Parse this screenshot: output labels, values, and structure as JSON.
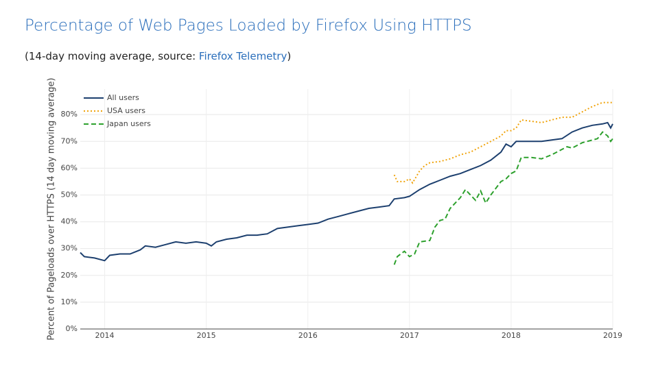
{
  "chart_data": {
    "type": "line",
    "title": "Percentage of Web Pages Loaded by Firefox Using HTTPS",
    "subtitle_prefix": "(14-day moving average, source: ",
    "subtitle_link": "Firefox Telemetry",
    "subtitle_suffix": ")",
    "y_label": "Percent of Pageloads over HTTPS (14 day moving average)",
    "xlim": [
      2013.76,
      2019.0
    ],
    "xticks": [
      2014,
      2015,
      2016,
      2017,
      2018,
      2019
    ],
    "ylim": [
      0,
      89.5
    ],
    "yticks": [
      {
        "value": 0,
        "label": "0%"
      },
      {
        "value": 10,
        "label": "10%"
      },
      {
        "value": 20,
        "label": "20%"
      },
      {
        "value": 30,
        "label": "30%"
      },
      {
        "value": 40,
        "label": "40%"
      },
      {
        "value": 50,
        "label": "50%"
      },
      {
        "value": 60,
        "label": "60%"
      },
      {
        "value": 70,
        "label": "70%"
      },
      {
        "value": 80,
        "label": "80%"
      }
    ],
    "grid": true,
    "legend": "top-left",
    "series": [
      {
        "name": "All users",
        "color": "#1c3f6e",
        "dash": "solid",
        "x": [
          2013.76,
          2013.8,
          2013.9,
          2014.0,
          2014.05,
          2014.15,
          2014.25,
          2014.35,
          2014.4,
          2014.5,
          2014.6,
          2014.7,
          2014.8,
          2014.9,
          2015.0,
          2015.05,
          2015.1,
          2015.2,
          2015.3,
          2015.4,
          2015.5,
          2015.6,
          2015.7,
          2015.8,
          2015.9,
          2016.0,
          2016.1,
          2016.2,
          2016.3,
          2016.4,
          2016.5,
          2016.6,
          2016.7,
          2016.8,
          2016.85,
          2016.95,
          2017.0,
          2017.1,
          2017.2,
          2017.3,
          2017.4,
          2017.5,
          2017.6,
          2017.7,
          2017.8,
          2017.9,
          2017.95,
          2018.0,
          2018.05,
          2018.2,
          2018.3,
          2018.4,
          2018.5,
          2018.6,
          2018.7,
          2018.8,
          2018.9,
          2018.95,
          2018.98,
          2019.0
        ],
        "values": [
          28.5,
          27,
          26.5,
          25.5,
          27.5,
          28,
          28,
          29.5,
          31,
          30.5,
          31.5,
          32.5,
          32,
          32.5,
          32,
          31,
          32.5,
          33.5,
          34,
          35,
          35,
          35.5,
          37.5,
          38,
          38.5,
          39,
          39.5,
          41,
          42,
          43,
          44,
          45,
          45.5,
          46,
          48.5,
          49,
          49.5,
          52,
          54,
          55.5,
          57,
          58,
          59.5,
          61,
          63,
          66,
          69,
          68,
          70,
          70,
          70,
          70.5,
          71,
          73.5,
          75,
          76,
          76.5,
          77,
          75,
          76.5
        ]
      },
      {
        "name": "USA users",
        "color": "#f0a30a",
        "dash": "dot",
        "x": [
          2016.85,
          2016.88,
          2016.95,
          2017.0,
          2017.03,
          2017.1,
          2017.15,
          2017.2,
          2017.3,
          2017.4,
          2017.5,
          2017.6,
          2017.7,
          2017.8,
          2017.9,
          2017.95,
          2018.0,
          2018.05,
          2018.1,
          2018.2,
          2018.3,
          2018.4,
          2018.5,
          2018.6,
          2018.7,
          2018.8,
          2018.9,
          2019.0
        ],
        "values": [
          57.5,
          55,
          55,
          56,
          54.5,
          59,
          61,
          62,
          62.5,
          63.5,
          65,
          66,
          68,
          70,
          72,
          74,
          74,
          75,
          78,
          77.5,
          77,
          78,
          79,
          79,
          81,
          83,
          84.5,
          84.5
        ]
      },
      {
        "name": "Japan users",
        "color": "#2ca02c",
        "dash": "dash",
        "x": [
          2016.85,
          2016.88,
          2016.95,
          2017.0,
          2017.05,
          2017.1,
          2017.2,
          2017.25,
          2017.3,
          2017.35,
          2017.4,
          2017.5,
          2017.55,
          2017.6,
          2017.65,
          2017.7,
          2017.75,
          2017.8,
          2017.9,
          2017.95,
          2018.0,
          2018.05,
          2018.1,
          2018.2,
          2018.3,
          2018.4,
          2018.5,
          2018.55,
          2018.6,
          2018.7,
          2018.8,
          2018.85,
          2018.9,
          2018.95,
          2018.98,
          2019.0
        ],
        "values": [
          24,
          27,
          29,
          27,
          28,
          32.5,
          33,
          38,
          40.5,
          41,
          45,
          49,
          52,
          50,
          48,
          51.5,
          47,
          50,
          55,
          56,
          58,
          59,
          64,
          64,
          63.5,
          65,
          67,
          68,
          67.5,
          69.5,
          70.5,
          71,
          73.5,
          72,
          70,
          71
        ]
      }
    ]
  }
}
